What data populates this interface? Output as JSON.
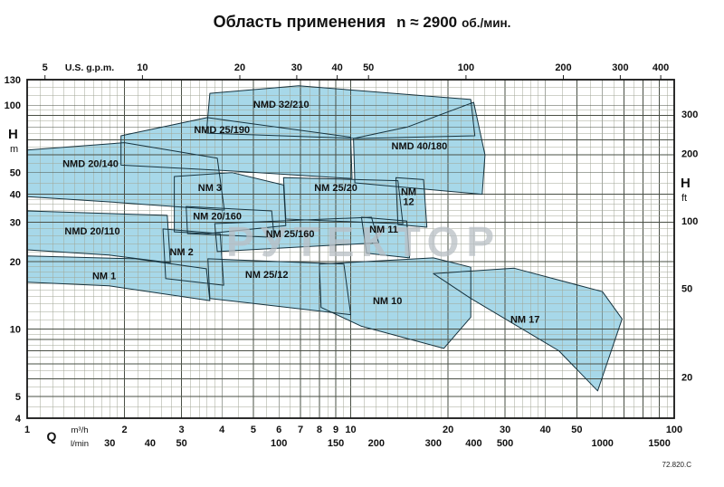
{
  "title": {
    "main": "Область применения",
    "speed": "n ≈ 2900",
    "unit": "об./мин."
  },
  "doc_number": "72.820.C",
  "watermark": "РУТЕКТОР",
  "colors": {
    "region_fill": "#a7d8e9",
    "region_stroke": "#16333f",
    "grid_minor": "#a0a695",
    "grid_major": "#4a5046",
    "axis_text": "#111111",
    "watermark_fill": "#b9bfc5"
  },
  "chart_data": {
    "type": "area",
    "title": "Область применения n ≈ 2900 об./мин.",
    "x_scale": "log",
    "y_scale": "log",
    "x_range_m3h": [
      1,
      100
    ],
    "y_range_m": [
      4,
      130
    ],
    "grid": "log-log dense",
    "axes": {
      "top": {
        "label": "U.S. g.p.m.",
        "ticks": [
          5,
          10,
          20,
          30,
          40,
          50,
          100,
          200,
          300,
          400
        ],
        "gpm_per_m3h": 4.403
      },
      "bottom_m3h": {
        "prefix": "Q",
        "label": "m³/h",
        "ticks": [
          1,
          2,
          3,
          4,
          5,
          6,
          7,
          8,
          9,
          10,
          20,
          30,
          40,
          50,
          100
        ]
      },
      "bottom_lmin": {
        "label": "l/min",
        "ticks": [
          30,
          40,
          50,
          100,
          150,
          200,
          300,
          400,
          500,
          1000,
          1500
        ]
      },
      "left": {
        "label": "H",
        "unit": "m",
        "ticks": [
          130,
          100,
          50,
          40,
          30,
          20,
          10,
          5,
          4
        ]
      },
      "right": {
        "label": "H",
        "unit": "ft",
        "ticks": [
          300,
          200,
          100,
          50,
          20
        ],
        "m_per_ft": 0.3048
      }
    },
    "regions": [
      {
        "name": "NMD 32/210",
        "points": [
          [
            3.58,
            75
          ],
          [
            3.67,
            113
          ],
          [
            6.9,
            122
          ],
          [
            23.5,
            106
          ],
          [
            24.2,
            73
          ],
          [
            10.5,
            71
          ]
        ],
        "label_at": [
          6.1,
          101
        ]
      },
      {
        "name": "NMD 25/190",
        "points": [
          [
            1.95,
            73
          ],
          [
            3.6,
            88
          ],
          [
            10,
            72
          ],
          [
            10.1,
            47
          ],
          [
            4.1,
            51
          ],
          [
            1.95,
            54
          ]
        ],
        "label_at": [
          4.0,
          78
        ]
      },
      {
        "name": "NMD 40/180",
        "points": [
          [
            10.2,
            71
          ],
          [
            15,
            80
          ],
          [
            24,
            103
          ],
          [
            26,
            60
          ],
          [
            25.5,
            40
          ],
          [
            10.3,
            45
          ]
        ],
        "label_at": [
          16.3,
          66
        ]
      },
      {
        "name": "NMD 20/140",
        "points": [
          [
            1,
            63
          ],
          [
            2,
            68
          ],
          [
            3.87,
            58
          ],
          [
            4.07,
            34
          ],
          [
            1.79,
            37
          ],
          [
            1,
            39
          ]
        ],
        "label_at": [
          1.57,
          55
        ]
      },
      {
        "name": "NM 3",
        "points": [
          [
            2.85,
            48
          ],
          [
            4.3,
            50
          ],
          [
            6.2,
            44
          ],
          [
            6.3,
            29
          ],
          [
            3.6,
            26.7
          ],
          [
            2.85,
            27.2
          ]
        ],
        "label_at": [
          3.67,
          43
        ]
      },
      {
        "name": "NM 25/20",
        "points": [
          [
            6.2,
            47.5
          ],
          [
            14,
            46
          ],
          [
            14.5,
            29.5
          ],
          [
            6.3,
            31
          ]
        ],
        "label_at": [
          9.0,
          43
        ]
      },
      {
        "name": "NM 12",
        "points": [
          [
            13.8,
            47.5
          ],
          [
            16.8,
            46.5
          ],
          [
            17.2,
            28.5
          ],
          [
            14,
            29.3
          ]
        ],
        "label_at": [
          15.1,
          39
        ],
        "label_lines": [
          "NM",
          "12"
        ]
      },
      {
        "name": "NM 20/160",
        "points": [
          [
            3.1,
            35.3
          ],
          [
            5.7,
            33.7
          ],
          [
            5.8,
            25.7
          ],
          [
            3.13,
            26.7
          ]
        ],
        "label_at": [
          3.87,
          32
        ]
      },
      {
        "name": "NM 25/160",
        "points": [
          [
            3.8,
            29.6
          ],
          [
            11.6,
            31.6
          ],
          [
            12.2,
            24.3
          ],
          [
            3.87,
            22.2
          ]
        ],
        "label_at": [
          6.5,
          26.7
        ]
      },
      {
        "name": "NM 11",
        "points": [
          [
            10.8,
            31.6
          ],
          [
            14.9,
            30.4
          ],
          [
            15.2,
            20.8
          ],
          [
            11.2,
            21.8
          ]
        ],
        "label_at": [
          12.65,
          28
        ]
      },
      {
        "name": "NMD 20/110",
        "points": [
          [
            1,
            33.7
          ],
          [
            2.71,
            32.2
          ],
          [
            2.77,
            19.8
          ],
          [
            1.79,
            21.4
          ],
          [
            1,
            22.6
          ]
        ],
        "label_at": [
          1.59,
          27.5
        ]
      },
      {
        "name": "NM 2",
        "points": [
          [
            2.63,
            28
          ],
          [
            3.95,
            26.7
          ],
          [
            4.05,
            15.7
          ],
          [
            2.68,
            16.8
          ]
        ],
        "label_at": [
          3.0,
          22.2
        ]
      },
      {
        "name": "NM 25/12",
        "points": [
          [
            3.62,
            20.6
          ],
          [
            9.53,
            19.5
          ],
          [
            10,
            11.6
          ],
          [
            3.67,
            13.7
          ]
        ],
        "label_at": [
          5.5,
          17.6
        ]
      },
      {
        "name": "NM 1",
        "points": [
          [
            1,
            21.2
          ],
          [
            2.16,
            20.6
          ],
          [
            3.58,
            18.6
          ],
          [
            3.67,
            13.4
          ],
          [
            1.79,
            15.6
          ],
          [
            1,
            16.2
          ]
        ],
        "label_at": [
          1.73,
          17.3
        ]
      },
      {
        "name": "NM 10",
        "points": [
          [
            8,
            19.5
          ],
          [
            18,
            20.8
          ],
          [
            23.5,
            18.9
          ],
          [
            23.5,
            11.3
          ],
          [
            19.4,
            8.2
          ],
          [
            10.8,
            10.3
          ],
          [
            8.1,
            12.5
          ]
        ],
        "label_at": [
          13,
          13.4
        ]
      },
      {
        "name": "NM 17",
        "points": [
          [
            18,
            17.7
          ],
          [
            32,
            18.7
          ],
          [
            60,
            14.7
          ],
          [
            69,
            11.1
          ],
          [
            58,
            5.3
          ],
          [
            44,
            8
          ],
          [
            23.5,
            13.7
          ]
        ],
        "label_at": [
          34.6,
          11.1
        ]
      }
    ]
  }
}
